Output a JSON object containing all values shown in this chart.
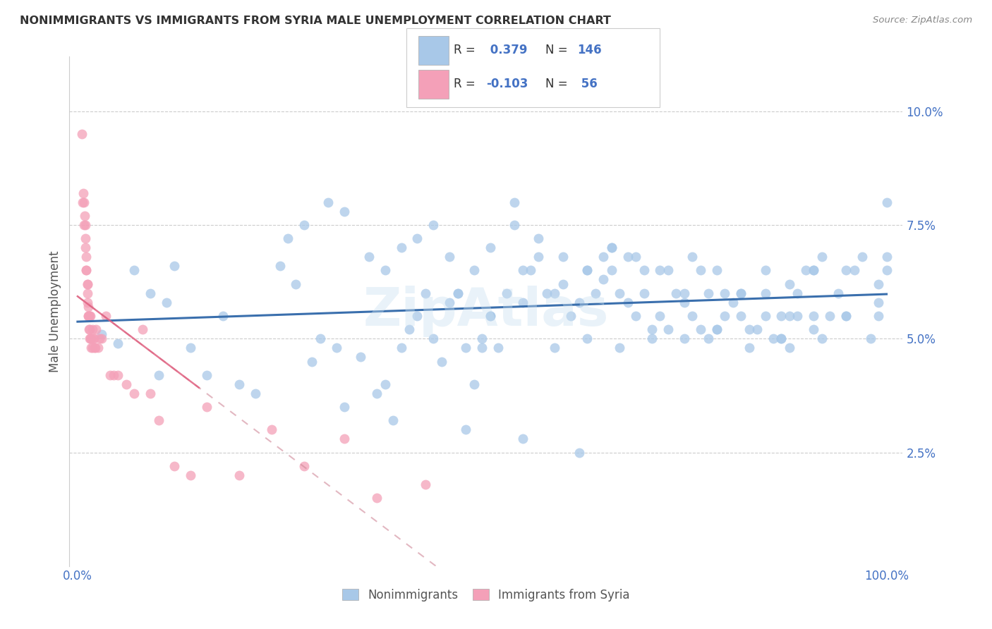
{
  "title": "NONIMMIGRANTS VS IMMIGRANTS FROM SYRIA MALE UNEMPLOYMENT CORRELATION CHART",
  "source": "Source: ZipAtlas.com",
  "ylabel": "Male Unemployment",
  "ytick_values": [
    0.025,
    0.05,
    0.075,
    0.1
  ],
  "ytick_labels": [
    "2.5%",
    "5.0%",
    "7.5%",
    "10.0%"
  ],
  "legend1_label": "Nonimmigrants",
  "legend2_label": "Immigrants from Syria",
  "R1": 0.379,
  "N1": 146,
  "R2": -0.103,
  "N2": 56,
  "blue_color": "#a8c8e8",
  "pink_color": "#f4a0b8",
  "blue_line_color": "#3a6fad",
  "pink_line_color": "#e06080",
  "watermark": "ZipAtlas",
  "blue_scatter_x": [
    0.03,
    0.05,
    0.07,
    0.09,
    0.1,
    0.11,
    0.12,
    0.14,
    0.16,
    0.18,
    0.2,
    0.22,
    0.25,
    0.27,
    0.29,
    0.3,
    0.32,
    0.33,
    0.35,
    0.37,
    0.38,
    0.39,
    0.4,
    0.41,
    0.42,
    0.43,
    0.44,
    0.45,
    0.46,
    0.47,
    0.48,
    0.49,
    0.5,
    0.5,
    0.51,
    0.52,
    0.53,
    0.54,
    0.55,
    0.56,
    0.57,
    0.58,
    0.59,
    0.6,
    0.61,
    0.62,
    0.63,
    0.64,
    0.65,
    0.65,
    0.66,
    0.66,
    0.67,
    0.68,
    0.68,
    0.69,
    0.7,
    0.7,
    0.71,
    0.72,
    0.73,
    0.73,
    0.74,
    0.75,
    0.75,
    0.76,
    0.77,
    0.77,
    0.78,
    0.78,
    0.79,
    0.8,
    0.8,
    0.81,
    0.82,
    0.82,
    0.83,
    0.84,
    0.85,
    0.85,
    0.86,
    0.87,
    0.87,
    0.88,
    0.88,
    0.89,
    0.89,
    0.9,
    0.91,
    0.91,
    0.92,
    0.92,
    0.93,
    0.94,
    0.95,
    0.95,
    0.96,
    0.97,
    0.98,
    0.99,
    0.99,
    0.99,
    1.0,
    1.0,
    1.0,
    0.26,
    0.28,
    0.31,
    0.33,
    0.36,
    0.38,
    0.4,
    0.42,
    0.44,
    0.46,
    0.49,
    0.51,
    0.54,
    0.57,
    0.6,
    0.63,
    0.66,
    0.69,
    0.72,
    0.76,
    0.79,
    0.82,
    0.85,
    0.88,
    0.91,
    0.47,
    0.51,
    0.55,
    0.59,
    0.63,
    0.67,
    0.71,
    0.75,
    0.79,
    0.83,
    0.87,
    0.91,
    0.95,
    0.48,
    0.55,
    0.62
  ],
  "blue_scatter_y": [
    0.051,
    0.049,
    0.065,
    0.06,
    0.042,
    0.058,
    0.066,
    0.048,
    0.042,
    0.055,
    0.04,
    0.038,
    0.066,
    0.062,
    0.045,
    0.05,
    0.048,
    0.035,
    0.046,
    0.038,
    0.04,
    0.032,
    0.048,
    0.052,
    0.055,
    0.06,
    0.05,
    0.045,
    0.058,
    0.06,
    0.048,
    0.04,
    0.048,
    0.05,
    0.055,
    0.048,
    0.06,
    0.08,
    0.065,
    0.065,
    0.068,
    0.06,
    0.06,
    0.062,
    0.055,
    0.058,
    0.065,
    0.06,
    0.063,
    0.068,
    0.07,
    0.065,
    0.06,
    0.058,
    0.068,
    0.055,
    0.06,
    0.065,
    0.05,
    0.055,
    0.052,
    0.065,
    0.06,
    0.058,
    0.06,
    0.055,
    0.052,
    0.065,
    0.05,
    0.06,
    0.052,
    0.055,
    0.06,
    0.058,
    0.06,
    0.055,
    0.052,
    0.052,
    0.06,
    0.055,
    0.05,
    0.05,
    0.055,
    0.048,
    0.055,
    0.055,
    0.06,
    0.065,
    0.055,
    0.065,
    0.068,
    0.05,
    0.055,
    0.06,
    0.065,
    0.055,
    0.065,
    0.068,
    0.05,
    0.062,
    0.058,
    0.055,
    0.065,
    0.068,
    0.08,
    0.072,
    0.075,
    0.08,
    0.078,
    0.068,
    0.065,
    0.07,
    0.072,
    0.075,
    0.068,
    0.065,
    0.07,
    0.075,
    0.072,
    0.068,
    0.065,
    0.07,
    0.068,
    0.065,
    0.068,
    0.065,
    0.06,
    0.065,
    0.062,
    0.065,
    0.06,
    0.055,
    0.058,
    0.048,
    0.05,
    0.048,
    0.052,
    0.05,
    0.052,
    0.048,
    0.05,
    0.052,
    0.055,
    0.03,
    0.028,
    0.025
  ],
  "pink_scatter_x": [
    0.005,
    0.006,
    0.007,
    0.008,
    0.008,
    0.009,
    0.01,
    0.01,
    0.01,
    0.011,
    0.011,
    0.011,
    0.012,
    0.012,
    0.012,
    0.012,
    0.013,
    0.013,
    0.013,
    0.014,
    0.014,
    0.015,
    0.015,
    0.015,
    0.016,
    0.016,
    0.017,
    0.017,
    0.018,
    0.018,
    0.019,
    0.02,
    0.021,
    0.022,
    0.023,
    0.025,
    0.027,
    0.03,
    0.035,
    0.04,
    0.045,
    0.05,
    0.06,
    0.07,
    0.08,
    0.09,
    0.1,
    0.12,
    0.14,
    0.16,
    0.2,
    0.24,
    0.28,
    0.33,
    0.37,
    0.43
  ],
  "pink_scatter_y": [
    0.095,
    0.08,
    0.082,
    0.075,
    0.08,
    0.077,
    0.07,
    0.072,
    0.075,
    0.065,
    0.068,
    0.065,
    0.062,
    0.062,
    0.06,
    0.058,
    0.057,
    0.055,
    0.055,
    0.052,
    0.055,
    0.052,
    0.05,
    0.055,
    0.05,
    0.055,
    0.05,
    0.048,
    0.048,
    0.052,
    0.05,
    0.05,
    0.048,
    0.048,
    0.052,
    0.048,
    0.05,
    0.05,
    0.055,
    0.042,
    0.042,
    0.042,
    0.04,
    0.038,
    0.052,
    0.038,
    0.032,
    0.022,
    0.02,
    0.035,
    0.02,
    0.03,
    0.022,
    0.028,
    0.015,
    0.018
  ],
  "xlim": [
    -0.01,
    1.02
  ],
  "ylim": [
    0.0,
    0.112
  ]
}
